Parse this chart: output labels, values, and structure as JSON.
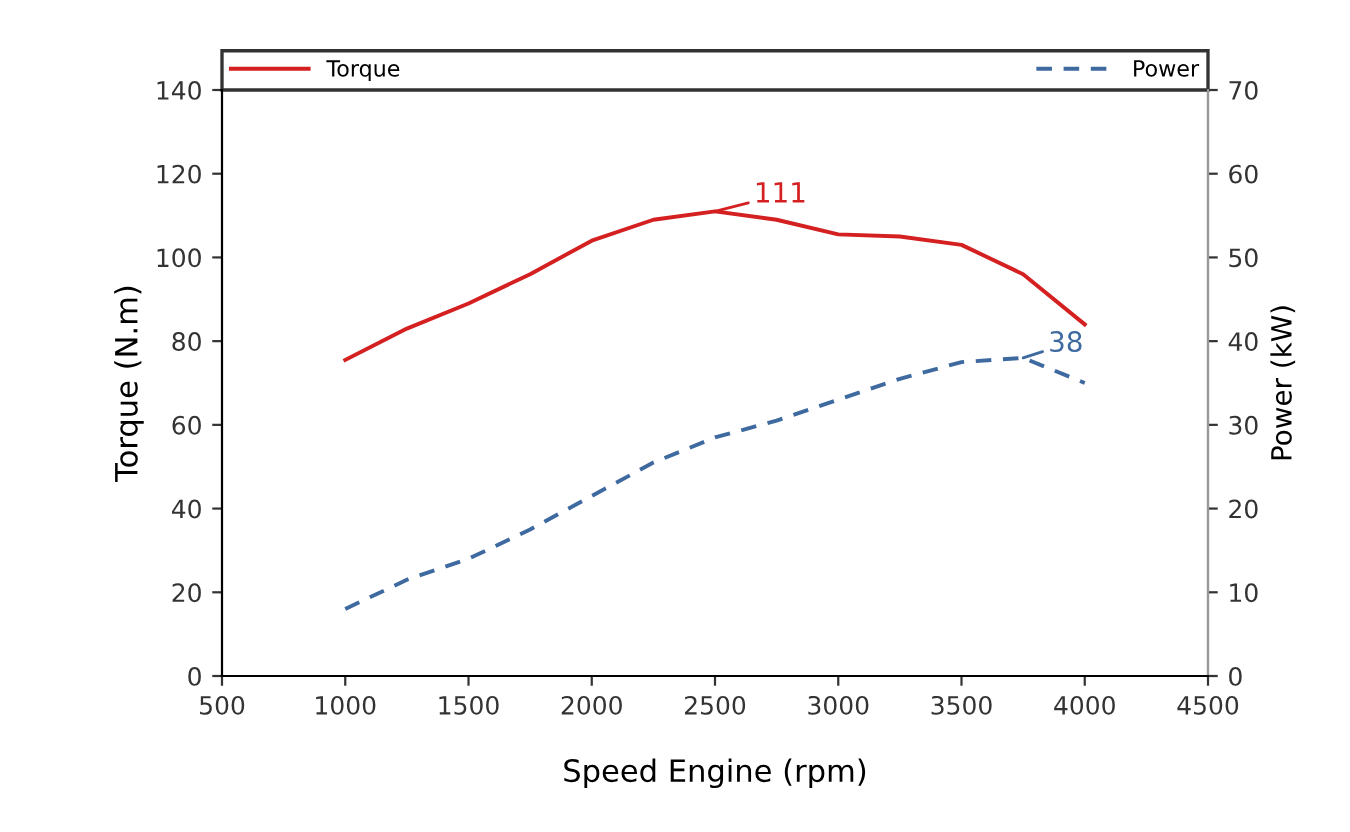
{
  "chart_data": {
    "type": "line",
    "xlabel": "Speed Engine (rpm)",
    "ylabel": "Torque (N.m)",
    "y2label": "Power (kW)",
    "x": [
      1000,
      1250,
      1500,
      1750,
      2000,
      2250,
      2500,
      2750,
      3000,
      3250,
      3500,
      3750,
      4000
    ],
    "series": [
      {
        "name": "Torque",
        "color": "#d42020",
        "line_style": "solid",
        "values": [
          75.5,
          83,
          89,
          96,
          104,
          109,
          111,
          109,
          105.5,
          105,
          103,
          96,
          84
        ]
      },
      {
        "name": "Power",
        "color": "#3e6aa0",
        "line_style": "dashed",
        "axis": "y2",
        "values": [
          8,
          11.5,
          14,
          17.5,
          21.5,
          25.5,
          28.5,
          30.5,
          33,
          35.5,
          37.5,
          38,
          35
        ]
      }
    ],
    "xlim": [
      500,
      4500
    ],
    "xticks": [
      500,
      1000,
      1500,
      2000,
      2500,
      3000,
      3500,
      4000,
      4500
    ],
    "ylim": [
      0,
      140
    ],
    "yticks": [
      0,
      20,
      40,
      60,
      80,
      100,
      120,
      140
    ],
    "y2lim": [
      0,
      70
    ],
    "y2ticks": [
      0,
      10,
      20,
      30,
      40,
      50,
      60,
      70
    ],
    "annotations": [
      {
        "text": "111",
        "x": 2500,
        "y": 111
      },
      "38"
    ],
    "legend": "top",
    "grid": false,
    "marker": "none"
  }
}
